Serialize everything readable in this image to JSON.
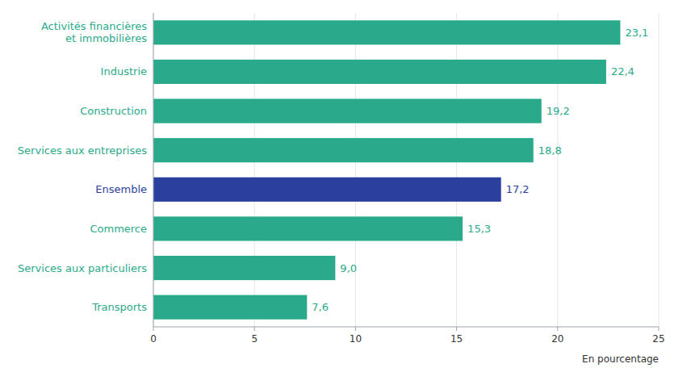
{
  "chart_data": {
    "type": "bar",
    "orientation": "horizontal",
    "categories": [
      "Activités financières\net immobilières",
      "Industrie",
      "Construction",
      "Services aux entreprises",
      "Ensemble",
      "Commerce",
      "Services aux particuliers",
      "Transports"
    ],
    "values": [
      23.1,
      22.4,
      19.2,
      18.8,
      17.2,
      15.3,
      9.0,
      7.6
    ],
    "value_labels": [
      "23,1",
      "22,4",
      "19,2",
      "18,8",
      "17,2",
      "15,3",
      "9,0",
      "7,6"
    ],
    "data_labels": true,
    "colors": [
      "#2aaa8a",
      "#2aaa8a",
      "#2aaa8a",
      "#2aaa8a",
      "#2b3f9e",
      "#2aaa8a",
      "#2aaa8a",
      "#2aaa8a"
    ],
    "xlim": [
      0,
      25
    ],
    "xticks": [
      0,
      5,
      10,
      15,
      20,
      25
    ],
    "xlabel": "En pourcentage",
    "grid": true
  }
}
